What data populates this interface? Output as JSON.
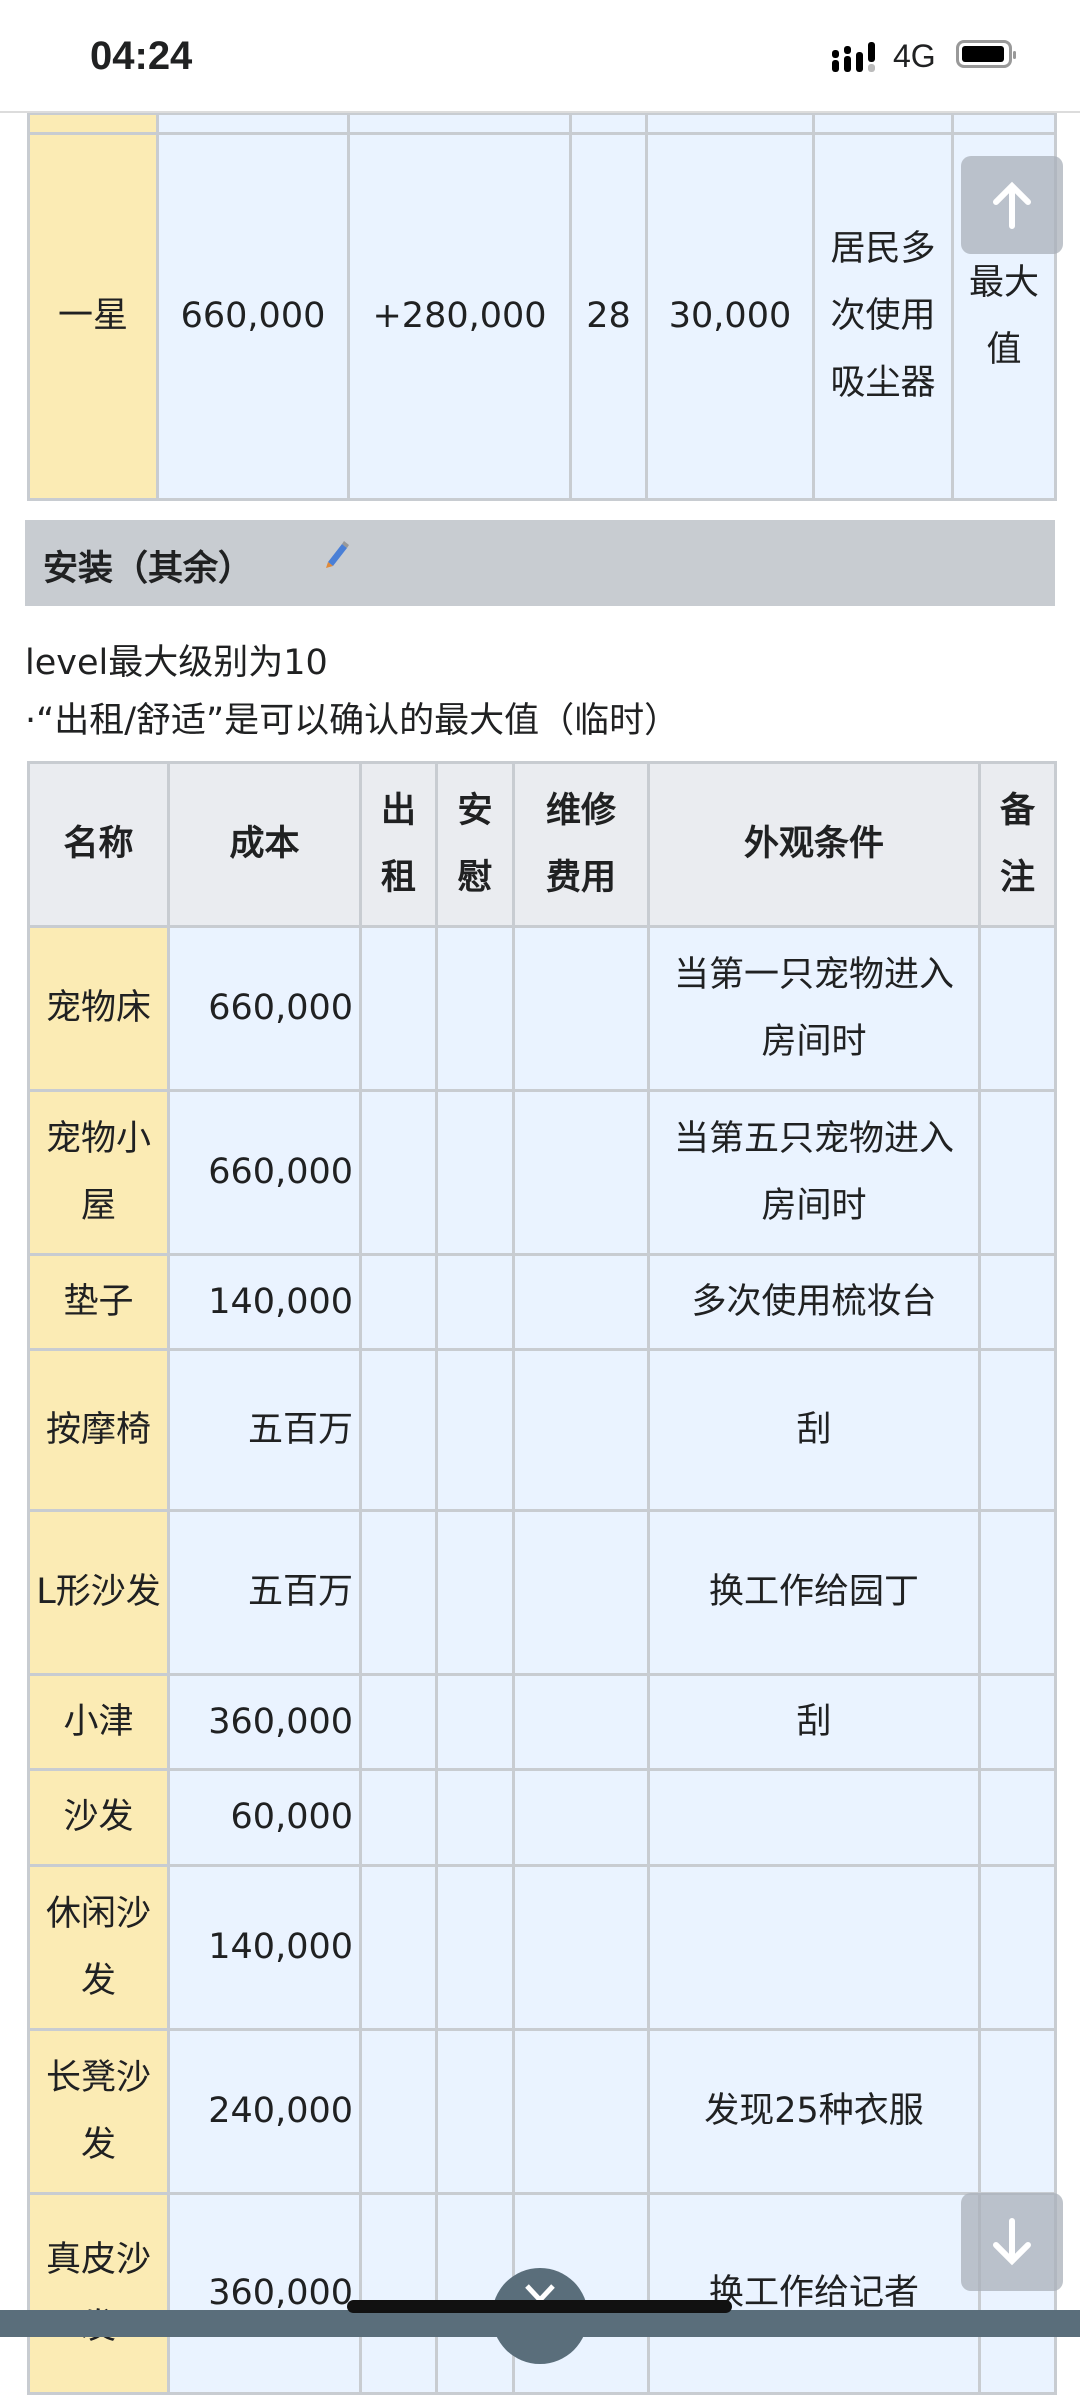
{
  "status_bar": {
    "time": "04:24",
    "network": "4G",
    "signal_icon": "signal-icon",
    "battery_icon": "battery-icon"
  },
  "top_table": {
    "rows": [
      {
        "cells": [
          "",
          "",
          "",
          "",
          "",
          "",
          ""
        ]
      },
      {
        "cells": [
          "一星",
          "660,000",
          "+280,000",
          "28",
          "30,000",
          "居民多次使用吸尘器",
          "最大值"
        ]
      }
    ]
  },
  "section": {
    "title": "安装（其余）",
    "edit_icon": "pencil-icon"
  },
  "notes": {
    "line1": "level最大级别为10",
    "line2": "·“出租/舒适”是可以确认的最大值（临时）"
  },
  "table": {
    "headers": [
      "名称",
      "成本",
      "出租",
      "安慰",
      "维修费用",
      "外观条件",
      "备注"
    ],
    "rows": [
      {
        "name": "宠物床",
        "cost": "660,000",
        "rent": "",
        "comfort": "",
        "upkeep": "",
        "condition": "当第一只宠物进入房间时",
        "note": ""
      },
      {
        "name": "宠物小屋",
        "cost": "660,000",
        "rent": "",
        "comfort": "",
        "upkeep": "",
        "condition": "当第五只宠物进入房间时",
        "note": ""
      },
      {
        "name": "垫子",
        "cost": "140,000",
        "rent": "",
        "comfort": "",
        "upkeep": "",
        "condition": "多次使用梳妆台",
        "note": ""
      },
      {
        "name": "按摩椅",
        "cost": "五百万",
        "rent": "",
        "comfort": "",
        "upkeep": "",
        "condition": "刮",
        "note": ""
      },
      {
        "name": "L形沙发",
        "cost": "五百万",
        "rent": "",
        "comfort": "",
        "upkeep": "",
        "condition": "换工作给园丁",
        "note": ""
      },
      {
        "name": "小津",
        "cost": "360,000",
        "rent": "",
        "comfort": "",
        "upkeep": "",
        "condition": "刮",
        "note": ""
      },
      {
        "name": "沙发",
        "cost": "60,000",
        "rent": "",
        "comfort": "",
        "upkeep": "",
        "condition": "",
        "note": ""
      },
      {
        "name": "休闲沙发",
        "cost": "140,000",
        "rent": "",
        "comfort": "",
        "upkeep": "",
        "condition": "",
        "note": ""
      },
      {
        "name": "长凳沙发",
        "cost": "240,000",
        "rent": "",
        "comfort": "",
        "upkeep": "",
        "condition": "发现25种衣服",
        "note": ""
      },
      {
        "name": "真皮沙发",
        "cost": "360,000",
        "rent": "",
        "comfort": "",
        "upkeep": "",
        "condition": "换工作给记者",
        "note": ""
      }
    ]
  },
  "overlay": {
    "scroll_up_icon": "arrow-up-icon",
    "scroll_down_icon": "arrow-down-icon",
    "expand_icon": "chevron-down-icon"
  },
  "colors": {
    "name_cell": "#fbebb4",
    "data_cell": "#eaf3ff",
    "header_cell": "#eaecf0",
    "section_bg": "#c8ccd1",
    "bottom_bar": "#5a6e7b"
  }
}
